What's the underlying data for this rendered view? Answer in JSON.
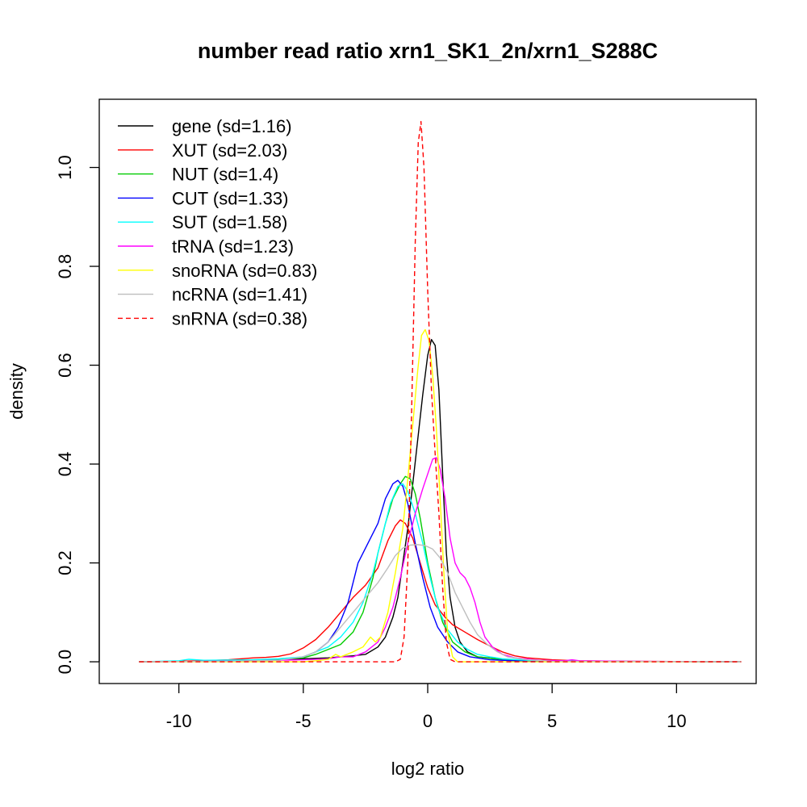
{
  "chart_data": {
    "type": "line",
    "title": "number read ratio xrn1_SK1_2n/xrn1_S288C",
    "xlabel": "log2 ratio",
    "ylabel": "density",
    "xlim": [
      -13.2,
      13.2
    ],
    "ylim": [
      -0.044,
      1.138
    ],
    "x_ticks": [
      -10,
      -5,
      0,
      5,
      10
    ],
    "x_tick_labels": [
      "-10",
      "-5",
      "0",
      "5",
      "10"
    ],
    "y_ticks": [
      0.0,
      0.2,
      0.4,
      0.6,
      0.8,
      1.0
    ],
    "y_tick_labels": [
      "0.0",
      "0.2",
      "0.4",
      "0.6",
      "0.8",
      "1.0"
    ],
    "grid": false,
    "legend_position": "top-left",
    "series": [
      {
        "name": "gene (sd=1.16)",
        "color": "#000000",
        "dash": "solid",
        "points": [
          [
            -11.6,
            0
          ],
          [
            -8,
            0.001
          ],
          [
            -6,
            0.004
          ],
          [
            -5,
            0.006
          ],
          [
            -4,
            0.008
          ],
          [
            -3,
            0.012
          ],
          [
            -2.5,
            0.015
          ],
          [
            -2,
            0.03
          ],
          [
            -1.7,
            0.05
          ],
          [
            -1.4,
            0.09
          ],
          [
            -1.2,
            0.13
          ],
          [
            -1,
            0.2
          ],
          [
            -0.8,
            0.27
          ],
          [
            -0.6,
            0.36
          ],
          [
            -0.4,
            0.45
          ],
          [
            -0.2,
            0.54
          ],
          [
            0,
            0.62
          ],
          [
            0.15,
            0.652
          ],
          [
            0.3,
            0.64
          ],
          [
            0.45,
            0.55
          ],
          [
            0.6,
            0.38
          ],
          [
            0.75,
            0.22
          ],
          [
            0.9,
            0.13
          ],
          [
            1.1,
            0.07
          ],
          [
            1.3,
            0.04
          ],
          [
            1.6,
            0.02
          ],
          [
            2,
            0.01
          ],
          [
            3,
            0.005
          ],
          [
            5,
            0.001
          ],
          [
            12.6,
            0
          ]
        ]
      },
      {
        "name": "XUT (sd=2.03)",
        "color": "#ff0000",
        "dash": "solid",
        "points": [
          [
            -11.6,
            0
          ],
          [
            -9,
            0.002
          ],
          [
            -8,
            0.004
          ],
          [
            -7,
            0.008
          ],
          [
            -6.5,
            0.009
          ],
          [
            -6,
            0.011
          ],
          [
            -5.5,
            0.016
          ],
          [
            -5,
            0.028
          ],
          [
            -4.5,
            0.045
          ],
          [
            -4,
            0.07
          ],
          [
            -3.5,
            0.1
          ],
          [
            -3,
            0.13
          ],
          [
            -2.5,
            0.155
          ],
          [
            -2,
            0.19
          ],
          [
            -1.6,
            0.245
          ],
          [
            -1.3,
            0.275
          ],
          [
            -1.1,
            0.287
          ],
          [
            -0.9,
            0.28
          ],
          [
            -0.6,
            0.25
          ],
          [
            -0.3,
            0.2
          ],
          [
            0,
            0.15
          ],
          [
            0.3,
            0.115
          ],
          [
            0.7,
            0.09
          ],
          [
            1,
            0.075
          ],
          [
            1.5,
            0.06
          ],
          [
            2,
            0.045
          ],
          [
            2.5,
            0.032
          ],
          [
            3,
            0.02
          ],
          [
            3.5,
            0.012
          ],
          [
            4,
            0.008
          ],
          [
            5,
            0.004
          ],
          [
            6,
            0.002
          ],
          [
            8,
            0.001
          ],
          [
            12.6,
            0
          ]
        ]
      },
      {
        "name": "NUT (sd=1.4)",
        "color": "#00cc00",
        "dash": "solid",
        "points": [
          [
            -11.6,
            0
          ],
          [
            -8,
            0.001
          ],
          [
            -6,
            0.004
          ],
          [
            -5,
            0.008
          ],
          [
            -4.5,
            0.015
          ],
          [
            -4,
            0.025
          ],
          [
            -3.5,
            0.035
          ],
          [
            -3,
            0.06
          ],
          [
            -2.6,
            0.1
          ],
          [
            -2.2,
            0.17
          ],
          [
            -2,
            0.22
          ],
          [
            -1.7,
            0.28
          ],
          [
            -1.4,
            0.33
          ],
          [
            -1.1,
            0.36
          ],
          [
            -0.9,
            0.375
          ],
          [
            -0.7,
            0.37
          ],
          [
            -0.5,
            0.34
          ],
          [
            -0.3,
            0.29
          ],
          [
            0,
            0.2
          ],
          [
            0.3,
            0.13
          ],
          [
            0.6,
            0.08
          ],
          [
            1,
            0.04
          ],
          [
            1.5,
            0.02
          ],
          [
            2,
            0.01
          ],
          [
            3,
            0.004
          ],
          [
            5,
            0.001
          ],
          [
            12.6,
            0
          ]
        ]
      },
      {
        "name": "CUT (sd=1.33)",
        "color": "#0000ff",
        "dash": "solid",
        "points": [
          [
            -11.6,
            0
          ],
          [
            -8,
            0.001
          ],
          [
            -6,
            0.003
          ],
          [
            -5,
            0.01
          ],
          [
            -4.5,
            0.02
          ],
          [
            -4,
            0.04
          ],
          [
            -3.6,
            0.07
          ],
          [
            -3.2,
            0.12
          ],
          [
            -2.8,
            0.2
          ],
          [
            -2.4,
            0.24
          ],
          [
            -2,
            0.28
          ],
          [
            -1.7,
            0.33
          ],
          [
            -1.4,
            0.36
          ],
          [
            -1.2,
            0.367
          ],
          [
            -1,
            0.355
          ],
          [
            -0.8,
            0.32
          ],
          [
            -0.5,
            0.24
          ],
          [
            -0.2,
            0.17
          ],
          [
            0.1,
            0.11
          ],
          [
            0.4,
            0.07
          ],
          [
            0.8,
            0.04
          ],
          [
            1.2,
            0.02
          ],
          [
            1.7,
            0.01
          ],
          [
            2.5,
            0.004
          ],
          [
            4,
            0.001
          ],
          [
            12.6,
            0
          ]
        ]
      },
      {
        "name": "SUT (sd=1.58)",
        "color": "#00ffff",
        "dash": "solid",
        "points": [
          [
            -11.6,
            0
          ],
          [
            -10,
            0.002
          ],
          [
            -9.6,
            0.005
          ],
          [
            -9,
            0.003
          ],
          [
            -7,
            0.004
          ],
          [
            -6,
            0.006
          ],
          [
            -5,
            0.01
          ],
          [
            -4.5,
            0.02
          ],
          [
            -4,
            0.03
          ],
          [
            -3.5,
            0.05
          ],
          [
            -3,
            0.08
          ],
          [
            -2.6,
            0.12
          ],
          [
            -2.2,
            0.18
          ],
          [
            -1.8,
            0.26
          ],
          [
            -1.5,
            0.32
          ],
          [
            -1.2,
            0.355
          ],
          [
            -1,
            0.36
          ],
          [
            -0.8,
            0.345
          ],
          [
            -0.5,
            0.3
          ],
          [
            -0.2,
            0.24
          ],
          [
            0.1,
            0.17
          ],
          [
            0.4,
            0.11
          ],
          [
            0.8,
            0.065
          ],
          [
            1.2,
            0.04
          ],
          [
            1.6,
            0.025
          ],
          [
            2,
            0.015
          ],
          [
            2.5,
            0.01
          ],
          [
            3,
            0.006
          ],
          [
            4,
            0.003
          ],
          [
            6,
            0.001
          ],
          [
            12.6,
            0
          ]
        ]
      },
      {
        "name": "tRNA (sd=1.23)",
        "color": "#ff00ff",
        "dash": "solid",
        "points": [
          [
            -11.6,
            0
          ],
          [
            -8,
            0.001
          ],
          [
            -6,
            0.003
          ],
          [
            -5,
            0.004
          ],
          [
            -4,
            0.006
          ],
          [
            -3.5,
            0.01
          ],
          [
            -3,
            0.01
          ],
          [
            -2.5,
            0.02
          ],
          [
            -2,
            0.04
          ],
          [
            -1.7,
            0.07
          ],
          [
            -1.4,
            0.11
          ],
          [
            -1.1,
            0.17
          ],
          [
            -0.8,
            0.24
          ],
          [
            -0.5,
            0.3
          ],
          [
            -0.2,
            0.35
          ],
          [
            0,
            0.38
          ],
          [
            0.2,
            0.41
          ],
          [
            0.35,
            0.413
          ],
          [
            0.5,
            0.39
          ],
          [
            0.7,
            0.33
          ],
          [
            0.9,
            0.25
          ],
          [
            1.1,
            0.2
          ],
          [
            1.3,
            0.18
          ],
          [
            1.5,
            0.17
          ],
          [
            1.7,
            0.15
          ],
          [
            1.9,
            0.12
          ],
          [
            2.1,
            0.08
          ],
          [
            2.3,
            0.05
          ],
          [
            2.6,
            0.03
          ],
          [
            3,
            0.015
          ],
          [
            3.5,
            0.008
          ],
          [
            4.5,
            0.003
          ],
          [
            5.5,
            0.002
          ],
          [
            5.8,
            0.004
          ],
          [
            6.1,
            0.002
          ],
          [
            8,
            0.001
          ],
          [
            12.6,
            0
          ]
        ]
      },
      {
        "name": "snoRNA (sd=0.83)",
        "color": "#ffff00",
        "dash": "solid",
        "points": [
          [
            -11.6,
            0
          ],
          [
            -5,
            0
          ],
          [
            -4.5,
            0.002
          ],
          [
            -4,
            0.005
          ],
          [
            -3.7,
            0.015
          ],
          [
            -3.5,
            0.01
          ],
          [
            -3,
            0.02
          ],
          [
            -2.6,
            0.03
          ],
          [
            -2.3,
            0.05
          ],
          [
            -2.1,
            0.04
          ],
          [
            -1.9,
            0.05
          ],
          [
            -1.6,
            0.1
          ],
          [
            -1.3,
            0.18
          ],
          [
            -1,
            0.27
          ],
          [
            -0.8,
            0.37
          ],
          [
            -0.6,
            0.48
          ],
          [
            -0.4,
            0.59
          ],
          [
            -0.25,
            0.66
          ],
          [
            -0.1,
            0.672
          ],
          [
            0.05,
            0.65
          ],
          [
            0.2,
            0.58
          ],
          [
            0.35,
            0.47
          ],
          [
            0.5,
            0.33
          ],
          [
            0.65,
            0.18
          ],
          [
            0.8,
            0.06
          ],
          [
            1,
            0.01
          ],
          [
            1.2,
            0
          ],
          [
            12.6,
            0
          ]
        ]
      },
      {
        "name": "ncRNA (sd=1.41)",
        "color": "#bebebe",
        "dash": "solid",
        "points": [
          [
            -11.6,
            0
          ],
          [
            -8,
            0.001
          ],
          [
            -6,
            0.003
          ],
          [
            -5,
            0.01
          ],
          [
            -4.5,
            0.02
          ],
          [
            -4,
            0.04
          ],
          [
            -3.5,
            0.07
          ],
          [
            -3,
            0.1
          ],
          [
            -2.5,
            0.13
          ],
          [
            -2,
            0.16
          ],
          [
            -1.6,
            0.19
          ],
          [
            -1.3,
            0.215
          ],
          [
            -1,
            0.23
          ],
          [
            -0.7,
            0.236
          ],
          [
            -0.4,
            0.237
          ],
          [
            -0.1,
            0.235
          ],
          [
            0.2,
            0.228
          ],
          [
            0.5,
            0.21
          ],
          [
            0.8,
            0.18
          ],
          [
            1.1,
            0.14
          ],
          [
            1.4,
            0.11
          ],
          [
            1.7,
            0.08
          ],
          [
            2,
            0.055
          ],
          [
            2.4,
            0.035
          ],
          [
            2.8,
            0.02
          ],
          [
            3.2,
            0.01
          ],
          [
            4,
            0.004
          ],
          [
            5,
            0.001
          ],
          [
            12.6,
            0
          ]
        ]
      },
      {
        "name": "snRNA (sd=0.38)",
        "color": "#ff0000",
        "dash": "dashed",
        "points": [
          [
            -11.6,
            0
          ],
          [
            -1.3,
            0
          ],
          [
            -1.1,
            0.005
          ],
          [
            -0.95,
            0.05
          ],
          [
            -0.8,
            0.2
          ],
          [
            -0.65,
            0.5
          ],
          [
            -0.5,
            0.85
          ],
          [
            -0.38,
            1.05
          ],
          [
            -0.27,
            1.093
          ],
          [
            -0.15,
            1.0
          ],
          [
            0,
            0.75
          ],
          [
            0.15,
            0.55
          ],
          [
            0.3,
            0.42
          ],
          [
            0.45,
            0.3
          ],
          [
            0.6,
            0.15
          ],
          [
            0.75,
            0.04
          ],
          [
            0.9,
            0.005
          ],
          [
            1.1,
            0
          ],
          [
            12.6,
            0
          ]
        ]
      }
    ]
  }
}
